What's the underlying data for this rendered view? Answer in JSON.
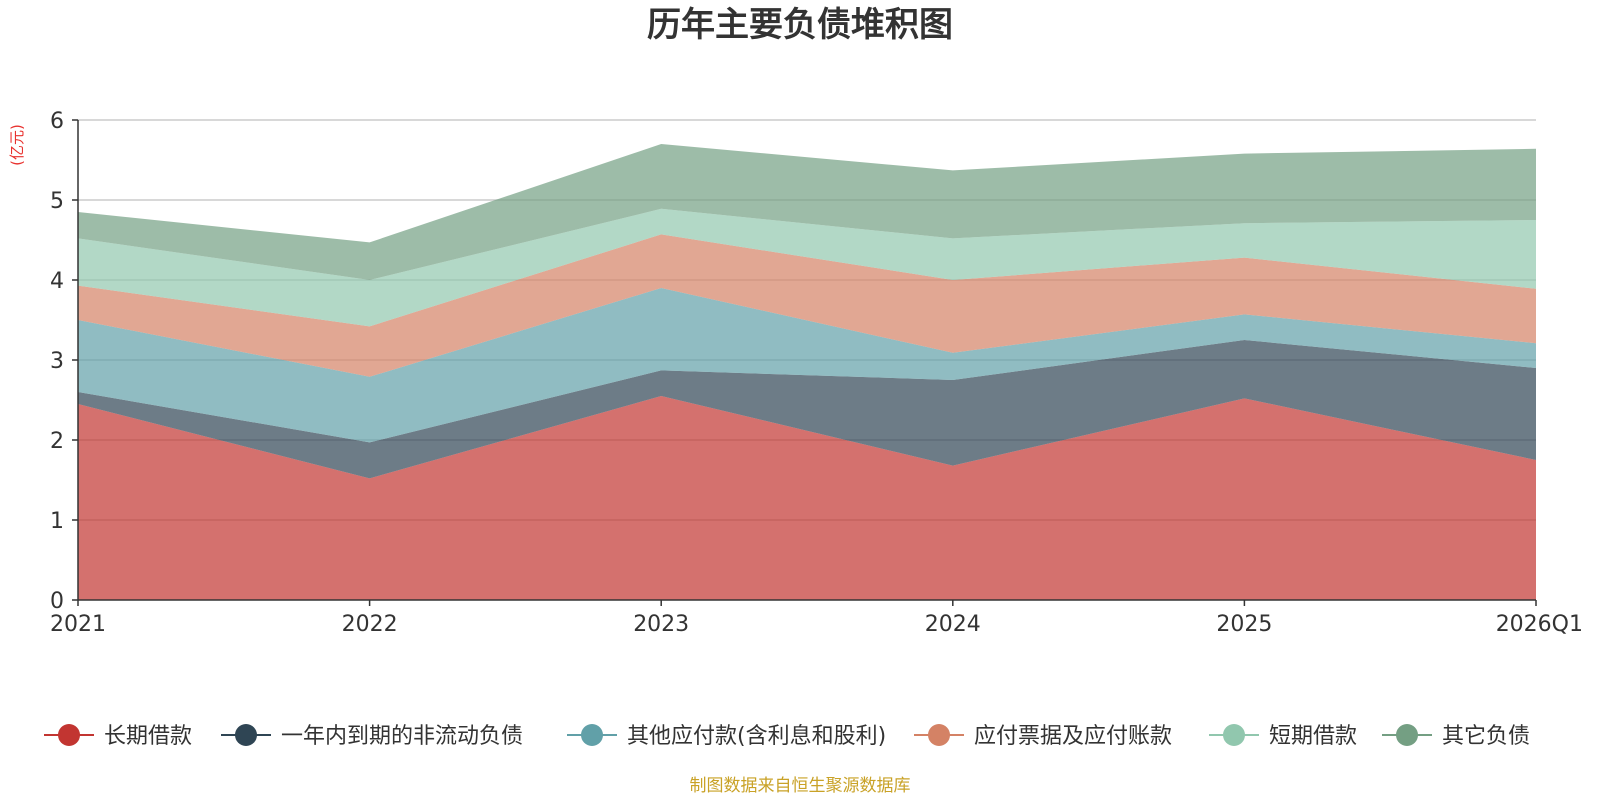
{
  "chart_data": {
    "type": "area",
    "stacked": true,
    "title": "历年主要负债堆积图",
    "ylabel": "(亿元)",
    "xlabel": "",
    "categories": [
      "2021",
      "2022",
      "2023",
      "2024",
      "2025",
      "2026Q1"
    ],
    "ylim": [
      0,
      6
    ],
    "yticks": [
      0,
      1,
      2,
      3,
      4,
      5,
      6
    ],
    "grid": true,
    "legend_position": "bottom",
    "series": [
      {
        "name": "长期借款",
        "color": "#c23531",
        "values": [
          2.45,
          1.52,
          2.55,
          1.68,
          2.52,
          1.75
        ]
      },
      {
        "name": "一年内到期的非流动负债",
        "color": "#2f4554",
        "values": [
          0.15,
          0.45,
          0.32,
          1.07,
          0.73,
          1.15
        ]
      },
      {
        "name": "其他应付款(含利息和股利)",
        "color": "#61a0a8",
        "values": [
          0.9,
          0.82,
          1.03,
          0.34,
          0.32,
          0.31
        ]
      },
      {
        "name": "应付票据及应付账款",
        "color": "#d48265",
        "values": [
          0.43,
          0.63,
          0.67,
          0.91,
          0.71,
          0.68
        ]
      },
      {
        "name": "短期借款",
        "color": "#91c7ae",
        "values": [
          0.59,
          0.58,
          0.32,
          0.52,
          0.43,
          0.86
        ]
      },
      {
        "name": "其它负债",
        "color": "#749f83",
        "values": [
          0.33,
          0.47,
          0.81,
          0.85,
          0.87,
          0.89
        ]
      }
    ]
  },
  "source_note": "制图数据来自恒生聚源数据库"
}
